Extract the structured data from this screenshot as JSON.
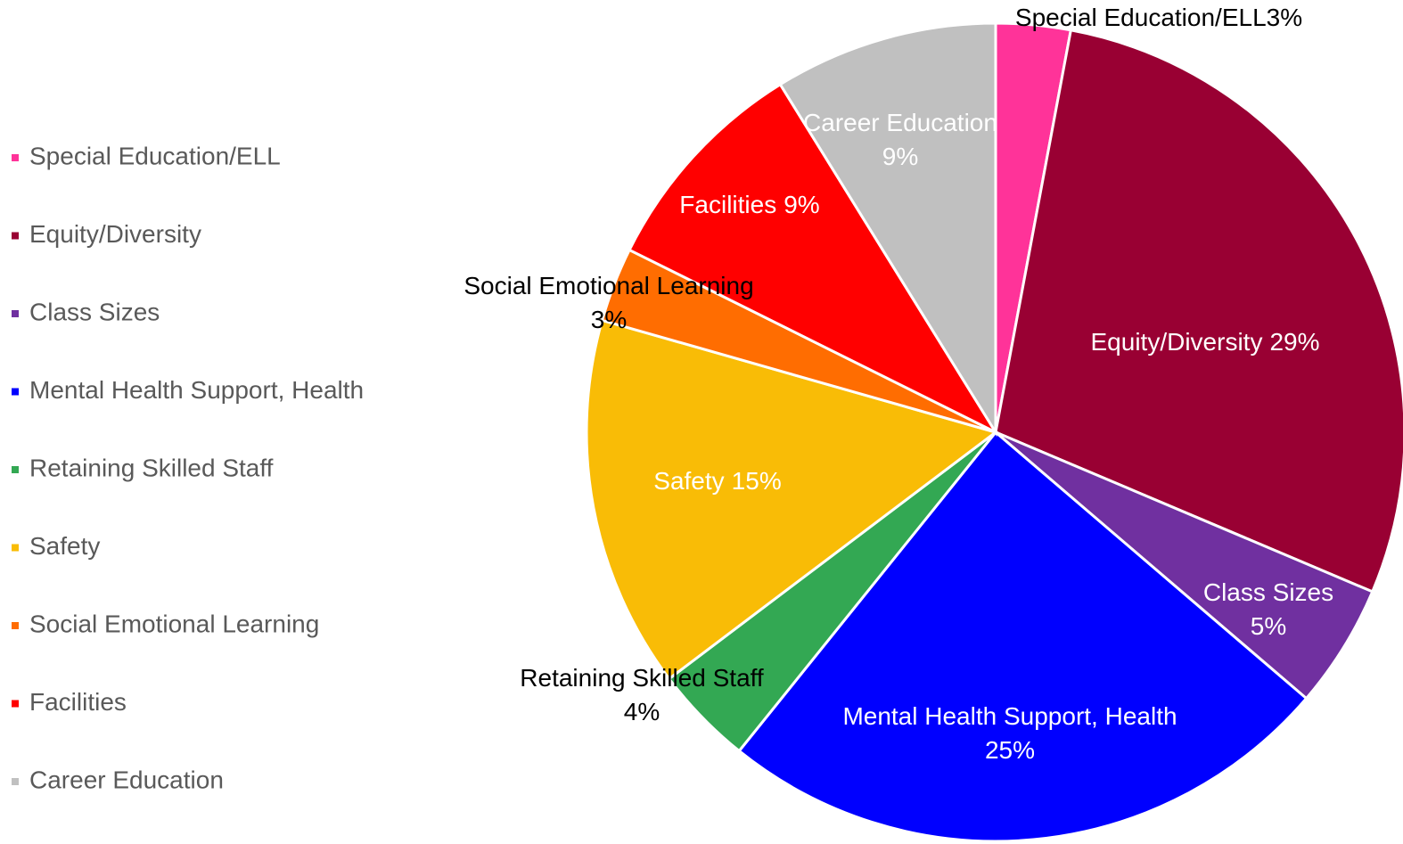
{
  "chart_data": {
    "type": "pie",
    "categories": [
      "Special Education/ELL",
      "Equity/Diversity",
      "Class Sizes",
      "Mental Health Support, Health",
      "Retaining Skilled Staff",
      "Safety",
      "Social Emotional Learning",
      "Facilities",
      "Career Education"
    ],
    "values": [
      3,
      29,
      5,
      25,
      4,
      15,
      3,
      9,
      9
    ],
    "value_labels": [
      "3%",
      "29%",
      "5%",
      "25%",
      "4%",
      "15%",
      "3%",
      "9%",
      "9%"
    ],
    "colors": [
      "#ff3399",
      "#990033",
      "#7030a0",
      "#0000ff",
      "#33a853",
      "#f9bc06",
      "#ff6d01",
      "#ff0000",
      "#c0c0c0"
    ],
    "legend": "left"
  }
}
